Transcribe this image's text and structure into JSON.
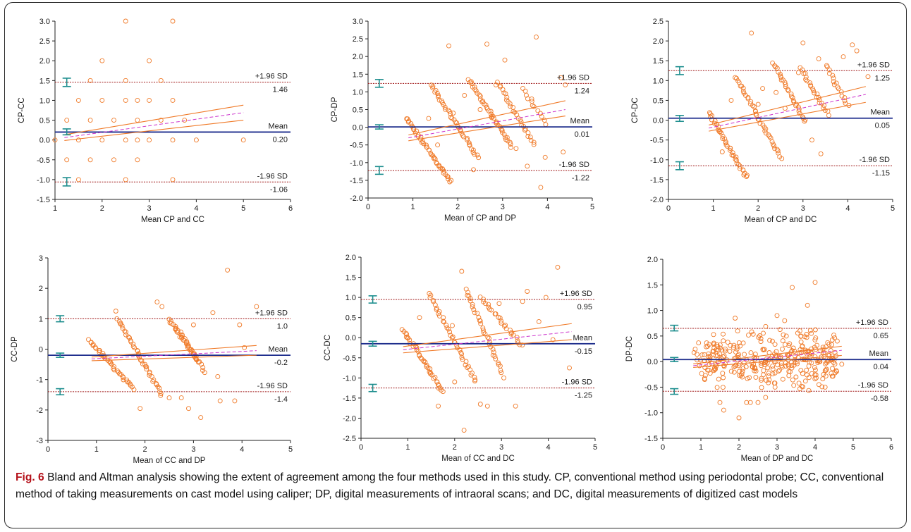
{
  "caption": {
    "label": "Fig. 6",
    "text": " Bland and Altman analysis showing the extent of agreement among the four methods used in this study. CP, conventional method using periodontal probe; CC, conventional method of taking measurements on cast model using caliper; DP, digital measurements of intraoral scans; and DC, digital measurements of digitized cast models"
  },
  "style": {
    "point_color": "#f07a28",
    "mean_line_color": "#1c2c8c",
    "loa_line_color": "#a01818",
    "ci_bar_color": "#1f8f8f",
    "regression_color": "#f07a28",
    "regression_ci_color": "#cc3a3a",
    "identity_dash_color": "#cc33cc",
    "axis_color": "#222222"
  },
  "chart_data": [
    {
      "type": "scatter",
      "ylabel": "CP-CC",
      "xlabel": "Mean CP and CC",
      "xlim": [
        1,
        6
      ],
      "ylim": [
        -1.5,
        3.0
      ],
      "xticks": [
        "1",
        "2",
        "3",
        "4",
        "5",
        "6"
      ],
      "yticks": [
        "-1.5",
        "-1.0",
        "-0.5",
        "0.0",
        "0.5",
        "1.0",
        "1.5",
        "2.0",
        "2.5",
        "3.0"
      ],
      "xtick_values": [
        1,
        2,
        3,
        4,
        5,
        6
      ],
      "ytick_values": [
        -1.5,
        -1.0,
        -0.5,
        0.0,
        0.5,
        1.0,
        1.5,
        2.0,
        2.5,
        3.0
      ],
      "mean": 0.2,
      "upper_loa": 1.46,
      "lower_loa": -1.06,
      "labels": {
        "upper": "+1.96 SD",
        "upper_value": "1.46",
        "mean": "Mean",
        "mean_value": "0.20",
        "lower": "-1.96 SD",
        "lower_value": "-1.06"
      },
      "ci_x": 1.25,
      "mean_ci": [
        0.13,
        0.28
      ],
      "upper_ci": [
        1.35,
        1.56
      ],
      "lower_ci": [
        -1.16,
        -0.95
      ],
      "regression": {
        "x": [
          1.2,
          5.0
        ],
        "y": [
          0.06,
          0.69
        ],
        "ci_upper_end": 0.88,
        "ci_lower_end": 0.5
      },
      "series": [
        {
          "x": [
            1.0,
            1.25,
            1.25,
            1.5,
            1.5,
            1.5,
            1.75,
            1.75,
            1.75,
            2.0,
            2.0,
            2.0,
            2.25,
            2.25,
            2.5,
            2.5,
            2.5,
            2.5,
            2.5,
            2.75,
            2.75,
            2.75,
            2.75,
            3.0,
            3.0,
            3.0,
            3.25,
            3.25,
            3.5,
            3.5,
            3.5,
            3.5,
            3.75,
            4.0,
            5.0
          ],
          "y": [
            0.0,
            0.5,
            -0.5,
            1.0,
            0.0,
            -1.0,
            1.5,
            0.5,
            -0.5,
            2.0,
            1.0,
            0.0,
            0.5,
            -0.5,
            3.0,
            1.0,
            0.0,
            1.5,
            -1.0,
            1.0,
            0.5,
            0.0,
            -0.5,
            2.0,
            1.0,
            0.0,
            1.5,
            0.5,
            3.0,
            1.0,
            0.0,
            -1.0,
            0.5,
            0.0,
            0.0
          ]
        }
      ]
    },
    {
      "type": "scatter",
      "ylabel": "CP-DP",
      "xlabel": "Mean of CP and DP",
      "xlim": [
        0,
        5
      ],
      "ylim": [
        -2.0,
        3.0
      ],
      "xticks": [
        "0",
        "1",
        "2",
        "3",
        "4",
        "5"
      ],
      "yticks": [
        "-2.0",
        "-1.5",
        "-1.0",
        "-0.5",
        "0.0",
        "0.5",
        "1.0",
        "1.5",
        "2.0",
        "2.5",
        "3.0"
      ],
      "xtick_values": [
        0,
        1,
        2,
        3,
        4,
        5
      ],
      "ytick_values": [
        -2.0,
        -1.5,
        -1.0,
        -0.5,
        0.0,
        0.5,
        1.0,
        1.5,
        2.0,
        2.5,
        3.0
      ],
      "mean": 0.01,
      "upper_loa": 1.24,
      "lower_loa": -1.22,
      "labels": {
        "upper": "+1.96 SD",
        "upper_value": "1.24",
        "mean": "Mean",
        "mean_value": "0.01",
        "lower": "-1.96 SD",
        "lower_value": "-1.22"
      },
      "ci_x": 0.25,
      "mean_ci": [
        -0.05,
        0.07
      ],
      "upper_ci": [
        1.13,
        1.35
      ],
      "lower_ci": [
        -1.33,
        -1.11
      ],
      "regression": {
        "x": [
          0.9,
          4.4
        ],
        "y": [
          -0.3,
          0.5
        ],
        "ci_upper_end": 0.75,
        "ci_lower_end": 0.32
      },
      "diagonal_bands": [
        {
          "x0": 0.85,
          "y0": 0.25,
          "x1": 1.85,
          "y1": -1.55,
          "n": 44
        },
        {
          "x0": 1.4,
          "y0": 1.2,
          "x1": 2.45,
          "y1": -0.85,
          "n": 40
        },
        {
          "x0": 2.25,
          "y0": 1.35,
          "x1": 3.2,
          "y1": -0.55,
          "n": 40
        },
        {
          "x0": 2.9,
          "y0": 1.25,
          "x1": 3.7,
          "y1": -0.5,
          "n": 28
        },
        {
          "x0": 3.45,
          "y0": 1.1,
          "x1": 3.95,
          "y1": 0.1,
          "n": 12
        }
      ],
      "series": [
        {
          "x": [
            1.35,
            1.8,
            1.9,
            2.15,
            2.5,
            2.65,
            2.85,
            3.05,
            3.3,
            3.55,
            3.75,
            3.85,
            3.95,
            4.3,
            4.35,
            4.4,
            3.65,
            2.75,
            2.35,
            1.55
          ],
          "y": [
            0.25,
            2.3,
            0.4,
            0.9,
            0.5,
            2.35,
            1.2,
            1.9,
            -0.6,
            -1.1,
            2.55,
            -1.7,
            -0.85,
            1.4,
            -0.7,
            1.2,
            0.8,
            0.3,
            -1.2,
            -0.5
          ]
        }
      ]
    },
    {
      "type": "scatter",
      "ylabel": "CP-DC",
      "xlabel": "Mean of CP and DC",
      "xlim": [
        0,
        5
      ],
      "ylim": [
        -2.0,
        2.5
      ],
      "xticks": [
        "0",
        "1",
        "2",
        "3",
        "4",
        "5"
      ],
      "yticks": [
        "-2.0",
        "-1.5",
        "-1.0",
        "-0.5",
        "0.0",
        "0.5",
        "1.0",
        "1.5",
        "2.0",
        "2.5"
      ],
      "xtick_values": [
        0,
        1,
        2,
        3,
        4,
        5
      ],
      "ytick_values": [
        -2.0,
        -1.5,
        -1.0,
        -0.5,
        0.0,
        0.5,
        1.0,
        1.5,
        2.0,
        2.5
      ],
      "mean": 0.05,
      "upper_loa": 1.25,
      "lower_loa": -1.15,
      "labels": {
        "upper": "+1.96 SD",
        "upper_value": "1.25",
        "mean": "Mean",
        "mean_value": "0.05",
        "lower": "-1.96 SD",
        "lower_value": "-1.15"
      },
      "ci_x": 0.25,
      "mean_ci": [
        -0.03,
        0.12
      ],
      "upper_ci": [
        1.15,
        1.35
      ],
      "lower_ci": [
        -1.25,
        -1.05
      ],
      "regression": {
        "x": [
          0.9,
          4.4
        ],
        "y": [
          -0.2,
          0.65
        ],
        "ci_upper_end": 0.85,
        "ci_lower_end": 0.45
      },
      "diagonal_bands": [
        {
          "x0": 0.9,
          "y0": 0.2,
          "x1": 1.75,
          "y1": -1.45,
          "n": 40
        },
        {
          "x0": 1.5,
          "y0": 1.1,
          "x1": 2.5,
          "y1": -0.95,
          "n": 40
        },
        {
          "x0": 2.35,
          "y0": 1.45,
          "x1": 3.05,
          "y1": -0.05,
          "n": 30
        },
        {
          "x0": 2.95,
          "y0": 1.3,
          "x1": 3.55,
          "y1": 0.15,
          "n": 24
        },
        {
          "x0": 3.5,
          "y0": 1.4,
          "x1": 4.0,
          "y1": 0.35,
          "n": 16
        }
      ],
      "series": [
        {
          "x": [
            1.4,
            1.85,
            2.1,
            2.4,
            2.9,
            3.0,
            3.35,
            3.4,
            3.9,
            4.1,
            4.2,
            4.45,
            3.2,
            2.6,
            1.2,
            3.7,
            2.0
          ],
          "y": [
            0.5,
            2.2,
            0.8,
            0.7,
            1.2,
            1.95,
            1.55,
            -0.85,
            1.6,
            1.9,
            1.75,
            1.1,
            -0.5,
            0.3,
            -0.8,
            0.9,
            0.4
          ]
        }
      ]
    },
    {
      "type": "scatter",
      "ylabel": "CC-DP",
      "xlabel": "Mean of CC and DP",
      "xlim": [
        0,
        5
      ],
      "ylim": [
        -3,
        3
      ],
      "xticks": [
        "0",
        "1",
        "2",
        "3",
        "4",
        "5"
      ],
      "yticks": [
        "-3",
        "-2",
        "-1",
        "0",
        "1",
        "2",
        "3"
      ],
      "xtick_values": [
        0,
        1,
        2,
        3,
        4,
        5
      ],
      "ytick_values": [
        -3,
        -2,
        -1,
        0,
        1,
        2,
        3
      ],
      "mean": -0.2,
      "upper_loa": 1.0,
      "lower_loa": -1.4,
      "labels": {
        "upper": "+1.96 SD",
        "upper_value": "1.0",
        "mean": "Mean",
        "mean_value": "-0.2",
        "lower": "-1.96 SD",
        "lower_value": "-1.4"
      },
      "ci_x": 0.25,
      "mean_ci": [
        -0.27,
        -0.13
      ],
      "upper_ci": [
        0.9,
        1.1
      ],
      "lower_ci": [
        -1.5,
        -1.3
      ],
      "regression": {
        "x": [
          0.9,
          4.3
        ],
        "y": [
          -0.32,
          -0.05
        ],
        "ci_upper_end": 0.12,
        "ci_lower_end": -0.2
      },
      "diagonal_bands": [
        {
          "x0": 0.85,
          "y0": 0.3,
          "x1": 1.75,
          "y1": -1.3,
          "n": 36
        },
        {
          "x0": 1.45,
          "y0": 1.0,
          "x1": 2.35,
          "y1": -1.5,
          "n": 40
        },
        {
          "x0": 2.5,
          "y0": 1.0,
          "x1": 3.1,
          "y1": -0.4,
          "n": 28
        },
        {
          "x0": 2.65,
          "y0": 0.7,
          "x1": 3.25,
          "y1": -0.75,
          "n": 20
        }
      ],
      "series": [
        {
          "x": [
            1.4,
            1.9,
            2.25,
            2.35,
            2.5,
            2.75,
            2.9,
            3.15,
            3.4,
            3.55,
            3.7,
            3.85,
            3.95,
            4.05,
            4.3,
            3.0,
            2.0,
            1.1,
            3.5
          ],
          "y": [
            1.25,
            -1.95,
            1.55,
            1.4,
            -1.6,
            -1.6,
            -1.95,
            -2.25,
            1.2,
            -1.7,
            2.6,
            -1.7,
            0.8,
            0.05,
            1.4,
            0.8,
            -0.5,
            -0.2,
            -0.9
          ]
        }
      ]
    },
    {
      "type": "scatter",
      "ylabel": "CC-DC",
      "xlabel": "Mean of CC and DC",
      "xlim": [
        0,
        5
      ],
      "ylim": [
        -2.5,
        2.0
      ],
      "xticks": [
        "0",
        "1",
        "2",
        "3",
        "4",
        "5"
      ],
      "yticks": [
        "-2.5",
        "-2.0",
        "-1.5",
        "-1.0",
        "-0.5",
        "0.0",
        "0.5",
        "1.0",
        "1.5",
        "2.0"
      ],
      "xtick_values": [
        0,
        1,
        2,
        3,
        4,
        5
      ],
      "ytick_values": [
        -2.5,
        -2.0,
        -1.5,
        -1.0,
        -0.5,
        0.0,
        0.5,
        1.0,
        1.5,
        2.0
      ],
      "mean": -0.15,
      "upper_loa": 0.95,
      "lower_loa": -1.25,
      "labels": {
        "upper": "+1.96 SD",
        "upper_value": "0.95",
        "mean": "Mean",
        "mean_value": "-0.15",
        "lower": "-1.96 SD",
        "lower_value": "-1.25"
      },
      "ci_x": 0.25,
      "mean_ci": [
        -0.21,
        -0.09
      ],
      "upper_ci": [
        0.86,
        1.04
      ],
      "lower_ci": [
        -1.34,
        -1.16
      ],
      "regression": {
        "x": [
          0.9,
          4.5
        ],
        "y": [
          -0.3,
          0.15
        ],
        "ci_upper_end": 0.35,
        "ci_lower_end": -0.05
      },
      "diagonal_bands": [
        {
          "x0": 0.9,
          "y0": 0.2,
          "x1": 1.75,
          "y1": -1.35,
          "n": 40
        },
        {
          "x0": 1.45,
          "y0": 1.1,
          "x1": 2.45,
          "y1": -1.1,
          "n": 40
        },
        {
          "x0": 2.25,
          "y0": 1.2,
          "x1": 3.0,
          "y1": -0.85,
          "n": 34
        },
        {
          "x0": 2.55,
          "y0": 1.0,
          "x1": 3.45,
          "y1": -0.2,
          "n": 26
        }
      ],
      "series": [
        {
          "x": [
            1.65,
            1.95,
            2.15,
            2.2,
            2.55,
            2.7,
            2.95,
            3.05,
            3.3,
            3.55,
            3.95,
            4.1,
            4.2,
            4.45,
            3.45,
            2.0,
            1.25,
            3.8
          ],
          "y": [
            -1.7,
            0.3,
            1.65,
            -2.3,
            -1.65,
            -1.7,
            0.85,
            -1.0,
            -1.7,
            1.15,
            1.0,
            -0.05,
            1.75,
            -0.75,
            0.9,
            -1.1,
            0.5,
            0.4
          ]
        }
      ]
    },
    {
      "type": "scatter",
      "ylabel": "DP-DC",
      "xlabel": "Mean of DP and DC",
      "xlim": [
        0,
        6
      ],
      "ylim": [
        -1.5,
        2.0
      ],
      "xticks": [
        "0",
        "1",
        "2",
        "3",
        "4",
        "5",
        "6"
      ],
      "yticks": [
        "-1.5",
        "-1.0",
        "-0.5",
        "0.0",
        "0.5",
        "1.0",
        "1.5",
        "2.0"
      ],
      "xtick_values": [
        0,
        1,
        2,
        3,
        4,
        5,
        6
      ],
      "ytick_values": [
        -1.5,
        -1.0,
        -0.5,
        0.0,
        0.5,
        1.0,
        1.5,
        2.0
      ],
      "mean": 0.04,
      "upper_loa": 0.65,
      "lower_loa": -0.58,
      "labels": {
        "upper": "+1.96 SD",
        "upper_value": "0.65",
        "mean": "Mean",
        "mean_value": "0.04",
        "lower": "-1.96 SD",
        "lower_value": "-0.58"
      },
      "ci_x": 0.3,
      "mean_ci": [
        0.0,
        0.08
      ],
      "upper_ci": [
        0.6,
        0.71
      ],
      "lower_ci": [
        -0.64,
        -0.53
      ],
      "regression": {
        "x": [
          0.8,
          4.7
        ],
        "y": [
          -0.08,
          0.22
        ],
        "ci_upper_end": 0.3,
        "ci_lower_end": 0.12
      },
      "cloud": {
        "n": 330,
        "xmin": 0.8,
        "xmax": 4.6,
        "ymin": -0.55,
        "ymax": 0.65
      },
      "series": [
        {
          "x": [
            1.1,
            1.5,
            1.6,
            1.9,
            2.0,
            2.2,
            2.3,
            2.5,
            2.7,
            3.0,
            3.2,
            3.4,
            3.6,
            3.8,
            3.9,
            4.0,
            4.1,
            4.3,
            4.7
          ],
          "y": [
            -0.35,
            -0.8,
            -0.95,
            0.85,
            -1.1,
            -0.8,
            -0.8,
            -0.8,
            -0.7,
            0.9,
            0.8,
            1.45,
            0.6,
            1.1,
            0.55,
            1.55,
            -0.45,
            -0.15,
            -0.05
          ]
        }
      ]
    }
  ]
}
